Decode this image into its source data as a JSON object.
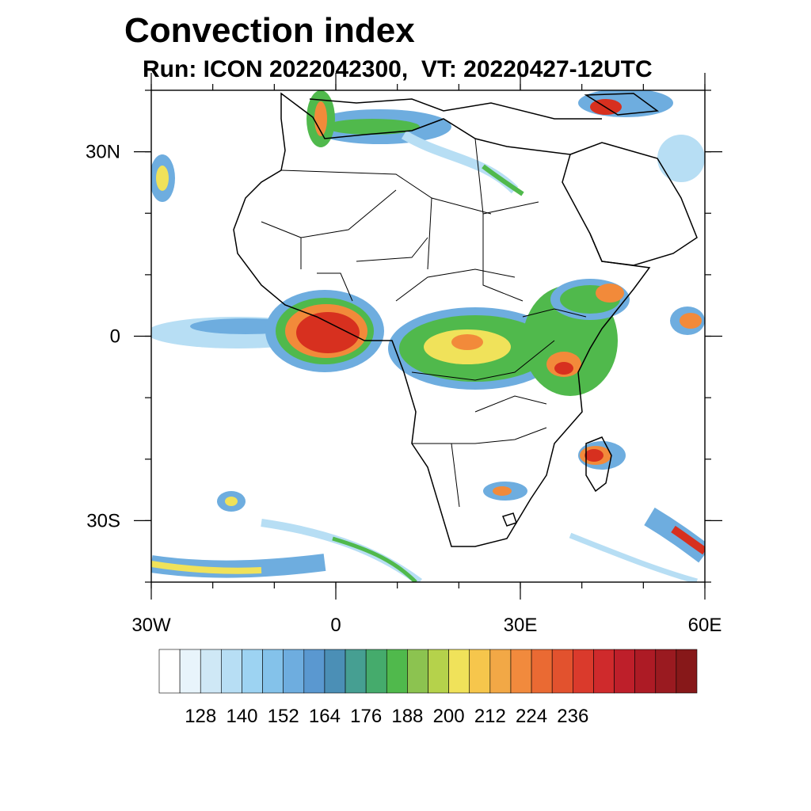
{
  "title": "Convection index",
  "subtitle": "Run: ICON 2022042300,  VT: 20220427-12UTC",
  "map": {
    "lon_range": [
      -30,
      60
    ],
    "lat_range": [
      -40,
      40
    ],
    "lon_ticks": [
      {
        "value": -30,
        "label": "30W"
      },
      {
        "value": 0,
        "label": "0"
      },
      {
        "value": 30,
        "label": "30E"
      },
      {
        "value": 60,
        "label": "60E"
      }
    ],
    "lat_ticks": [
      {
        "value": 30,
        "label": "30N"
      },
      {
        "value": 0,
        "label": "0"
      },
      {
        "value": -30,
        "label": "30S"
      }
    ],
    "minor_lon_step": 10,
    "minor_lat_step": 10
  },
  "colorbar": {
    "colors": [
      "#ffffff",
      "#e8f4fb",
      "#cfe8f6",
      "#b7def4",
      "#9dd3f2",
      "#84c2ea",
      "#6eaddf",
      "#5a98d0",
      "#4b8fb6",
      "#469f92",
      "#45ab6c",
      "#50b94c",
      "#8cc350",
      "#b5d24b",
      "#f0e25a",
      "#f6c64c",
      "#f2a846",
      "#f18a3d",
      "#ea6a33",
      "#e2522e",
      "#da3a2c",
      "#cf2a2c",
      "#be1f2a",
      "#ad1b25",
      "#9a1a20",
      "#871819"
    ],
    "labels": [
      "128",
      "140",
      "152",
      "164",
      "176",
      "188",
      "200",
      "212",
      "224",
      "236"
    ]
  },
  "colors": {
    "intense": "#d7301f",
    "strong": "#f28a3a",
    "moderate": "#f0e25a",
    "mid": "#50b94c",
    "weak": "#6eaddf",
    "faint": "#b7def4"
  }
}
